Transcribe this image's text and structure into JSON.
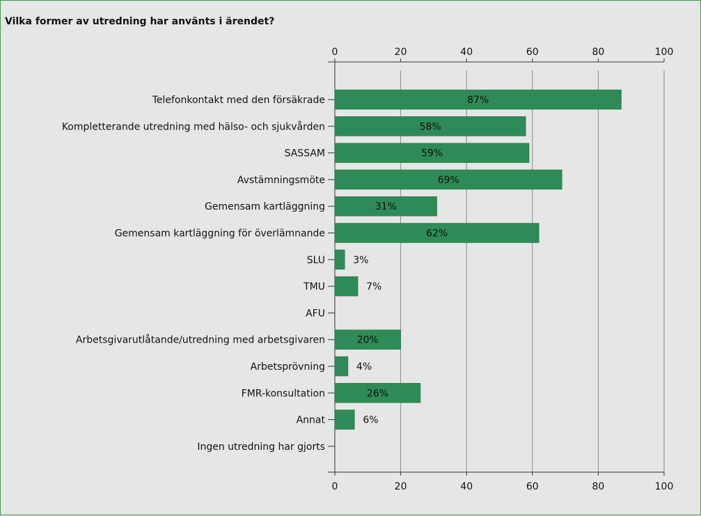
{
  "chart_data": {
    "type": "bar",
    "orientation": "horizontal",
    "title": "Vilka former av utredning har använts i ärendet?",
    "xlim": [
      0,
      100
    ],
    "ticks": [
      0,
      20,
      40,
      60,
      80,
      100
    ],
    "grid": true,
    "bar_color": "#2e8b57",
    "categories": [
      "Telefonkontakt med den försäkrade",
      "Kompletterande utredning med hälso- och sjukvården",
      "SASSAM",
      "Avstämningsmöte",
      "Gemensam kartläggning",
      "Gemensam kartläggning för överlämnande",
      "SLU",
      "TMU",
      "AFU",
      "Arbetsgivarutlåtande/utredning med arbetsgivaren",
      "Arbetsprövning",
      "FMR-konsultation",
      "Annat",
      "Ingen utredning har gjorts"
    ],
    "values": [
      87,
      58,
      59,
      69,
      31,
      62,
      3,
      7,
      0,
      20,
      4,
      26,
      6,
      0
    ],
    "value_labels": [
      "87%",
      "58%",
      "59%",
      "69%",
      "31%",
      "62%",
      "3%",
      "7%",
      "",
      "20%",
      "4%",
      "26%",
      "6%",
      ""
    ]
  }
}
